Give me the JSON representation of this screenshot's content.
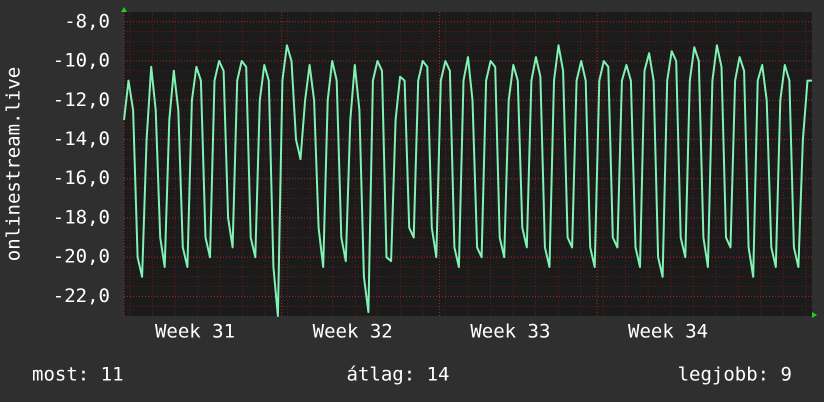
{
  "chart_data": {
    "type": "line",
    "y_label": "onlinestream.live",
    "color": "#7ff2b4",
    "values": [
      -13,
      -11,
      -12.5,
      -20,
      -21,
      -14,
      -10.3,
      -12.5,
      -19,
      -20.5,
      -13,
      -10.5,
      -12.5,
      -19.5,
      -20.5,
      -12,
      -10.3,
      -11,
      -19,
      -20,
      -11,
      -10,
      -10.5,
      -18,
      -19.5,
      -11,
      -10,
      -10.3,
      -19,
      -20,
      -12,
      -10.2,
      -11,
      -20.5,
      -23,
      -11,
      -9.2,
      -10,
      -14,
      -15,
      -12,
      -10.2,
      -12,
      -18.5,
      -20.5,
      -12,
      -10,
      -11,
      -19,
      -20.2,
      -13,
      -10.2,
      -12.5,
      -21,
      -22.8,
      -11,
      -10,
      -10.5,
      -20,
      -20.2,
      -13,
      -10.8,
      -11,
      -18.5,
      -19,
      -11,
      -10,
      -10.3,
      -18.5,
      -20,
      -11,
      -10,
      -10.5,
      -19.5,
      -20.5,
      -11,
      -9.8,
      -12,
      -19.5,
      -20,
      -11,
      -10,
      -10.3,
      -19,
      -20,
      -12,
      -10.2,
      -11,
      -18.5,
      -19.5,
      -11,
      -9.8,
      -10.8,
      -19.5,
      -20.5,
      -11,
      -9.2,
      -10.5,
      -19,
      -19.5,
      -11,
      -10,
      -11,
      -19.5,
      -20.5,
      -11,
      -10,
      -10.3,
      -19,
      -19.5,
      -11,
      -10.2,
      -11,
      -19.5,
      -20.5,
      -10.5,
      -9.6,
      -11,
      -20,
      -21,
      -11,
      -9.5,
      -10,
      -19,
      -20,
      -11,
      -9.3,
      -10,
      -19,
      -20.5,
      -11,
      -9.2,
      -10.3,
      -19,
      -19.5,
      -11,
      -9.8,
      -10.5,
      -19.5,
      -21,
      -11,
      -10.2,
      -12,
      -19.5,
      -20.5,
      -12,
      -10.2,
      -11,
      -19.5,
      -20.5,
      -14,
      -11,
      -11
    ],
    "ylim": [
      -23,
      -7.5
    ],
    "yticks": [
      {
        "value": -8,
        "label": "-8,0"
      },
      {
        "value": -10,
        "label": "-10,0"
      },
      {
        "value": -12,
        "label": "-12,0"
      },
      {
        "value": -14,
        "label": "-14,0"
      },
      {
        "value": -16,
        "label": "-16,0"
      },
      {
        "value": -18,
        "label": "-18,0"
      },
      {
        "value": -20,
        "label": "-20,0"
      },
      {
        "value": -22,
        "label": "-22,0"
      }
    ],
    "xtick_labels": [
      "Week 31",
      "Week 32",
      "Week 33",
      "Week 34"
    ],
    "grid": true,
    "footer": [
      "most: 11",
      "átlag: 14",
      "legjobb: 9"
    ]
  }
}
